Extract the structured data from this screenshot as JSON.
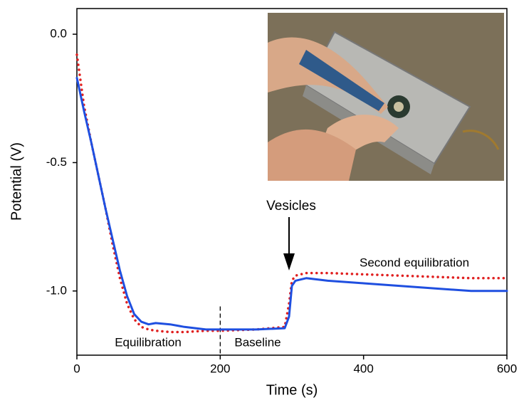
{
  "chart_data": {
    "type": "line",
    "x_label": "Time (s)",
    "y_label": "Potential (V)",
    "x": [
      0,
      10,
      20,
      30,
      40,
      50,
      60,
      70,
      80,
      90,
      100,
      110,
      130,
      150,
      180,
      200,
      250,
      290,
      296,
      300,
      305,
      320,
      350,
      400,
      450,
      500,
      550,
      600
    ],
    "series": [
      {
        "color": "#1f4fe0",
        "style": "solid",
        "values": [
          -0.17,
          -0.3,
          -0.42,
          -0.55,
          -0.68,
          -0.8,
          -0.92,
          -1.02,
          -1.09,
          -1.12,
          -1.13,
          -1.125,
          -1.13,
          -1.14,
          -1.15,
          -1.15,
          -1.15,
          -1.145,
          -1.1,
          -0.98,
          -0.96,
          -0.95,
          -0.96,
          -0.97,
          -0.98,
          -0.99,
          -1.0,
          -1.0
        ]
      },
      {
        "color": "#e02020",
        "style": "dotted",
        "values": [
          -0.08,
          -0.28,
          -0.42,
          -0.55,
          -0.68,
          -0.82,
          -0.95,
          -1.05,
          -1.11,
          -1.14,
          -1.15,
          -1.155,
          -1.16,
          -1.16,
          -1.155,
          -1.155,
          -1.15,
          -1.14,
          -1.05,
          -0.96,
          -0.94,
          -0.93,
          -0.93,
          -0.935,
          -0.94,
          -0.945,
          -0.95,
          -0.95
        ]
      }
    ],
    "vline_x": 200,
    "annotations": [
      "Equilibration",
      "Baseline",
      "Vesicles",
      "Second equilibration"
    ],
    "xlim": [
      0,
      600
    ],
    "xticks": [
      0,
      200,
      400,
      600
    ],
    "ylim": [
      -1.25,
      0.1
    ],
    "yticks": [
      {
        "value": 0,
        "label": "0.0"
      },
      -0.5,
      {
        "value": -1,
        "label": "-1.0"
      }
    ],
    "grid": false
  }
}
